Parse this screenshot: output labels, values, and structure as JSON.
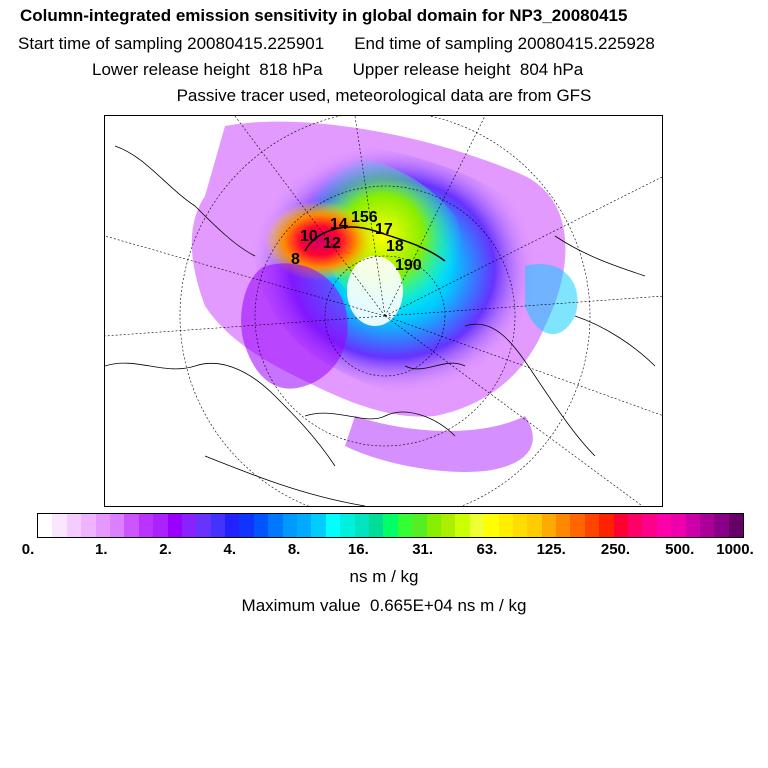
{
  "header": {
    "title": "Column-integrated emission sensitivity in global domain for NP3_20080415",
    "start_label": "Start time of sampling 20080415.225901",
    "end_label": "End time of sampling 20080415.225928",
    "lower_label": "Lower release height  818 hPa",
    "upper_label": "Upper release height  804 hPa",
    "note": "Passive tracer used, meteorological data are from GFS"
  },
  "map": {
    "projection": "polar-stereographic (north)",
    "trajectory_labels": [
      "10",
      "14",
      "12",
      "156",
      "17",
      "18",
      "190",
      "8"
    ]
  },
  "colorbar": {
    "tick_labels": [
      "0.",
      "1.",
      "2.",
      "4.",
      "8.",
      "16.",
      "31.",
      "63.",
      "125.",
      "250.",
      "500.",
      "1000."
    ],
    "colors": [
      "#ffffff",
      "#fbe6ff",
      "#f5ccff",
      "#f0b3ff",
      "#e599ff",
      "#dd80ff",
      "#cc55ff",
      "#bb33ff",
      "#aa22ff",
      "#9900ff",
      "#8822ff",
      "#6633ff",
      "#4433ff",
      "#2222ff",
      "#1133ff",
      "#0055ff",
      "#0077ff",
      "#0099ff",
      "#00aaff",
      "#00ccff",
      "#00ffff",
      "#00f0e0",
      "#00e5c0",
      "#00dd99",
      "#00ff66",
      "#33ff33",
      "#55ee22",
      "#88ee00",
      "#aaee00",
      "#ccff00",
      "#eeff33",
      "#ffff00",
      "#ffee00",
      "#ffdd00",
      "#ffcc00",
      "#ffaa00",
      "#ff8800",
      "#ff6600",
      "#ff4400",
      "#ff2200",
      "#ff0033",
      "#ff0066",
      "#ff0088",
      "#ff00aa",
      "#ee00aa",
      "#cc00aa",
      "#aa0099",
      "#880088",
      "#660066"
    ],
    "units": "ns m / kg"
  },
  "footer": {
    "max_value": "Maximum value  0.665E+04 ns m / kg"
  }
}
